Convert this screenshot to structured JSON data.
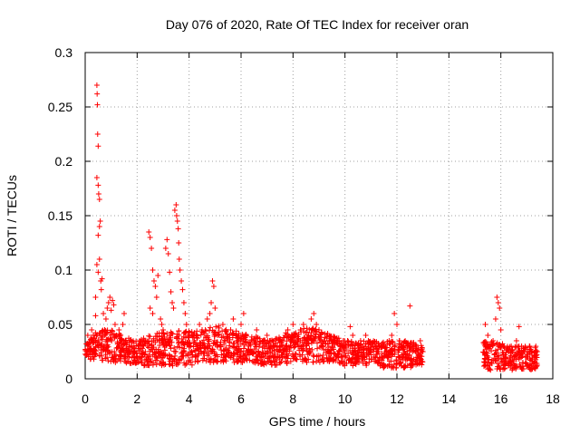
{
  "chart_data": {
    "type": "scatter",
    "title": "Day 076 of 2020, Rate Of TEC Index for receiver oran",
    "xlabel": "GPS time / hours",
    "ylabel": "ROTI / TECUs",
    "xlim": [
      0,
      18
    ],
    "ylim": [
      0,
      0.3
    ],
    "x_ticks": [
      "0",
      "2",
      "4",
      "6",
      "8",
      "10",
      "12",
      "14",
      "16",
      "18"
    ],
    "y_ticks": [
      "0",
      "0.05",
      "0.1",
      "0.15",
      "0.2",
      "0.25",
      "0.3"
    ],
    "grid": true,
    "marker": "+",
    "color": "#ff0000",
    "series": [
      {
        "points": [
          [
            0.05,
            0.022
          ],
          [
            0.1,
            0.04
          ],
          [
            0.15,
            0.03
          ],
          [
            0.2,
            0.018
          ],
          [
            0.25,
            0.045
          ],
          [
            0.3,
            0.025
          ],
          [
            0.35,
            0.035
          ],
          [
            0.4,
            0.058
          ],
          [
            0.45,
            0.27
          ],
          [
            0.46,
            0.262
          ],
          [
            0.47,
            0.252
          ],
          [
            0.48,
            0.225
          ],
          [
            0.5,
            0.214
          ],
          [
            0.45,
            0.185
          ],
          [
            0.5,
            0.178
          ],
          [
            0.52,
            0.17
          ],
          [
            0.55,
            0.165
          ],
          [
            0.58,
            0.145
          ],
          [
            0.55,
            0.14
          ],
          [
            0.5,
            0.132
          ],
          [
            0.45,
            0.105
          ],
          [
            0.5,
            0.098
          ],
          [
            0.55,
            0.11
          ],
          [
            0.6,
            0.09
          ],
          [
            0.62,
            0.082
          ],
          [
            0.65,
            0.092
          ],
          [
            0.4,
            0.075
          ],
          [
            0.7,
            0.06
          ],
          [
            0.75,
            0.045
          ],
          [
            0.8,
            0.055
          ],
          [
            0.85,
            0.065
          ],
          [
            0.9,
            0.07
          ],
          [
            0.95,
            0.075
          ],
          [
            1.0,
            0.063
          ],
          [
            1.05,
            0.072
          ],
          [
            1.1,
            0.068
          ],
          [
            1.15,
            0.05
          ],
          [
            1.2,
            0.04
          ],
          [
            1.25,
            0.032
          ],
          [
            1.3,
            0.045
          ],
          [
            1.35,
            0.025
          ],
          [
            1.4,
            0.03
          ],
          [
            1.45,
            0.05
          ],
          [
            1.5,
            0.06
          ],
          [
            1.55,
            0.035
          ],
          [
            1.6,
            0.028
          ],
          [
            1.7,
            0.02
          ],
          [
            1.8,
            0.03
          ],
          [
            1.9,
            0.025
          ],
          [
            2.0,
            0.02
          ],
          [
            2.1,
            0.035
          ],
          [
            2.2,
            0.028
          ],
          [
            2.3,
            0.022
          ],
          [
            2.4,
            0.03
          ],
          [
            2.45,
            0.135
          ],
          [
            2.5,
            0.13
          ],
          [
            2.55,
            0.12
          ],
          [
            2.6,
            0.1
          ],
          [
            2.65,
            0.09
          ],
          [
            2.7,
            0.085
          ],
          [
            2.75,
            0.075
          ],
          [
            2.5,
            0.065
          ],
          [
            2.6,
            0.06
          ],
          [
            2.8,
            0.095
          ],
          [
            2.9,
            0.055
          ],
          [
            3.0,
            0.045
          ],
          [
            2.95,
            0.05
          ],
          [
            3.1,
            0.12
          ],
          [
            3.15,
            0.128
          ],
          [
            3.2,
            0.115
          ],
          [
            3.25,
            0.098
          ],
          [
            3.3,
            0.08
          ],
          [
            3.35,
            0.07
          ],
          [
            3.4,
            0.065
          ],
          [
            3.45,
            0.155
          ],
          [
            3.5,
            0.16
          ],
          [
            3.52,
            0.15
          ],
          [
            3.55,
            0.145
          ],
          [
            3.58,
            0.138
          ],
          [
            3.6,
            0.125
          ],
          [
            3.62,
            0.11
          ],
          [
            3.65,
            0.1
          ],
          [
            3.7,
            0.09
          ],
          [
            3.75,
            0.082
          ],
          [
            3.8,
            0.07
          ],
          [
            3.85,
            0.06
          ],
          [
            3.9,
            0.05
          ],
          [
            3.95,
            0.04
          ],
          [
            4.0,
            0.03
          ],
          [
            4.1,
            0.025
          ],
          [
            4.2,
            0.035
          ],
          [
            4.3,
            0.04
          ],
          [
            4.4,
            0.05
          ],
          [
            4.5,
            0.045
          ],
          [
            4.6,
            0.03
          ],
          [
            4.7,
            0.055
          ],
          [
            4.8,
            0.06
          ],
          [
            4.85,
            0.07
          ],
          [
            4.9,
            0.09
          ],
          [
            4.95,
            0.085
          ],
          [
            5.0,
            0.065
          ],
          [
            5.1,
            0.04
          ],
          [
            5.2,
            0.03
          ],
          [
            5.3,
            0.05
          ],
          [
            5.4,
            0.035
          ],
          [
            5.5,
            0.025
          ],
          [
            5.6,
            0.045
          ],
          [
            5.7,
            0.055
          ],
          [
            5.8,
            0.04
          ],
          [
            5.9,
            0.03
          ],
          [
            6.0,
            0.05
          ],
          [
            6.1,
            0.06
          ],
          [
            6.2,
            0.04
          ],
          [
            6.3,
            0.03
          ],
          [
            6.4,
            0.025
          ],
          [
            6.5,
            0.035
          ],
          [
            6.6,
            0.045
          ],
          [
            6.7,
            0.03
          ],
          [
            6.8,
            0.02
          ],
          [
            6.9,
            0.03
          ],
          [
            7.0,
            0.04
          ],
          [
            7.1,
            0.035
          ],
          [
            7.2,
            0.025
          ],
          [
            7.3,
            0.02
          ],
          [
            7.4,
            0.03
          ],
          [
            7.5,
            0.02
          ],
          [
            7.6,
            0.03
          ],
          [
            7.7,
            0.04
          ],
          [
            7.8,
            0.045
          ],
          [
            7.9,
            0.035
          ],
          [
            8.0,
            0.05
          ],
          [
            8.1,
            0.04
          ],
          [
            8.2,
            0.03
          ],
          [
            8.3,
            0.045
          ],
          [
            8.4,
            0.05
          ],
          [
            8.5,
            0.035
          ],
          [
            8.6,
            0.04
          ],
          [
            8.7,
            0.055
          ],
          [
            8.8,
            0.06
          ],
          [
            8.9,
            0.05
          ],
          [
            9.0,
            0.045
          ],
          [
            9.1,
            0.03
          ],
          [
            9.2,
            0.035
          ],
          [
            9.3,
            0.04
          ],
          [
            9.4,
            0.025
          ],
          [
            9.5,
            0.03
          ],
          [
            9.6,
            0.035
          ],
          [
            9.7,
            0.02
          ],
          [
            9.8,
            0.025
          ],
          [
            9.9,
            0.03
          ],
          [
            10.0,
            0.02
          ],
          [
            10.1,
            0.035
          ],
          [
            10.2,
            0.048
          ],
          [
            10.3,
            0.04
          ],
          [
            10.4,
            0.025
          ],
          [
            10.5,
            0.02
          ],
          [
            10.6,
            0.035
          ],
          [
            10.7,
            0.03
          ],
          [
            10.8,
            0.04
          ],
          [
            10.9,
            0.035
          ],
          [
            11.0,
            0.025
          ],
          [
            11.1,
            0.02
          ],
          [
            11.2,
            0.03
          ],
          [
            11.3,
            0.025
          ],
          [
            11.4,
            0.02
          ],
          [
            11.5,
            0.03
          ],
          [
            11.6,
            0.025
          ],
          [
            11.7,
            0.035
          ],
          [
            11.8,
            0.04
          ],
          [
            11.9,
            0.06
          ],
          [
            12.0,
            0.05
          ],
          [
            12.1,
            0.035
          ],
          [
            12.2,
            0.02
          ],
          [
            12.3,
            0.025
          ],
          [
            12.4,
            0.03
          ],
          [
            12.5,
            0.067
          ],
          [
            12.6,
            0.025
          ],
          [
            12.7,
            0.03
          ],
          [
            12.8,
            0.02
          ],
          [
            12.9,
            0.035
          ],
          [
            13.0,
            0.025
          ],
          [
            15.4,
            0.05
          ],
          [
            15.5,
            0.04
          ],
          [
            15.6,
            0.03
          ],
          [
            15.7,
            0.035
          ],
          [
            15.8,
            0.055
          ],
          [
            15.85,
            0.075
          ],
          [
            15.9,
            0.07
          ],
          [
            15.95,
            0.065
          ],
          [
            16.0,
            0.045
          ],
          [
            16.1,
            0.03
          ],
          [
            16.2,
            0.02
          ],
          [
            16.3,
            0.025
          ],
          [
            16.4,
            0.03
          ],
          [
            16.5,
            0.02
          ],
          [
            16.6,
            0.035
          ],
          [
            16.7,
            0.048
          ],
          [
            16.8,
            0.03
          ],
          [
            16.9,
            0.025
          ],
          [
            17.0,
            0.02
          ],
          [
            17.1,
            0.03
          ],
          [
            17.2,
            0.025
          ],
          [
            17.3,
            0.02
          ],
          [
            17.4,
            0.025
          ]
        ],
        "band": [
          [
            0.0,
            0.018,
            0.032
          ],
          [
            0.5,
            0.018,
            0.045
          ],
          [
            1.0,
            0.015,
            0.045
          ],
          [
            1.5,
            0.015,
            0.04
          ],
          [
            2.0,
            0.012,
            0.035
          ],
          [
            2.5,
            0.012,
            0.04
          ],
          [
            3.0,
            0.012,
            0.045
          ],
          [
            3.5,
            0.012,
            0.045
          ],
          [
            4.0,
            0.012,
            0.045
          ],
          [
            4.5,
            0.015,
            0.045
          ],
          [
            5.0,
            0.015,
            0.05
          ],
          [
            5.5,
            0.015,
            0.045
          ],
          [
            6.0,
            0.015,
            0.045
          ],
          [
            6.5,
            0.015,
            0.04
          ],
          [
            7.0,
            0.012,
            0.035
          ],
          [
            7.5,
            0.012,
            0.04
          ],
          [
            8.0,
            0.015,
            0.045
          ],
          [
            8.5,
            0.015,
            0.048
          ],
          [
            9.0,
            0.015,
            0.045
          ],
          [
            9.5,
            0.015,
            0.04
          ],
          [
            10.0,
            0.012,
            0.035
          ],
          [
            10.5,
            0.012,
            0.035
          ],
          [
            11.0,
            0.012,
            0.035
          ],
          [
            11.5,
            0.01,
            0.035
          ],
          [
            12.0,
            0.01,
            0.035
          ],
          [
            12.5,
            0.01,
            0.035
          ],
          [
            13.0,
            0.012,
            0.03
          ]
        ],
        "band2": [
          [
            15.3,
            0.008,
            0.035
          ],
          [
            15.8,
            0.008,
            0.035
          ],
          [
            16.3,
            0.008,
            0.03
          ],
          [
            16.8,
            0.008,
            0.03
          ],
          [
            17.4,
            0.008,
            0.03
          ]
        ]
      }
    ]
  }
}
